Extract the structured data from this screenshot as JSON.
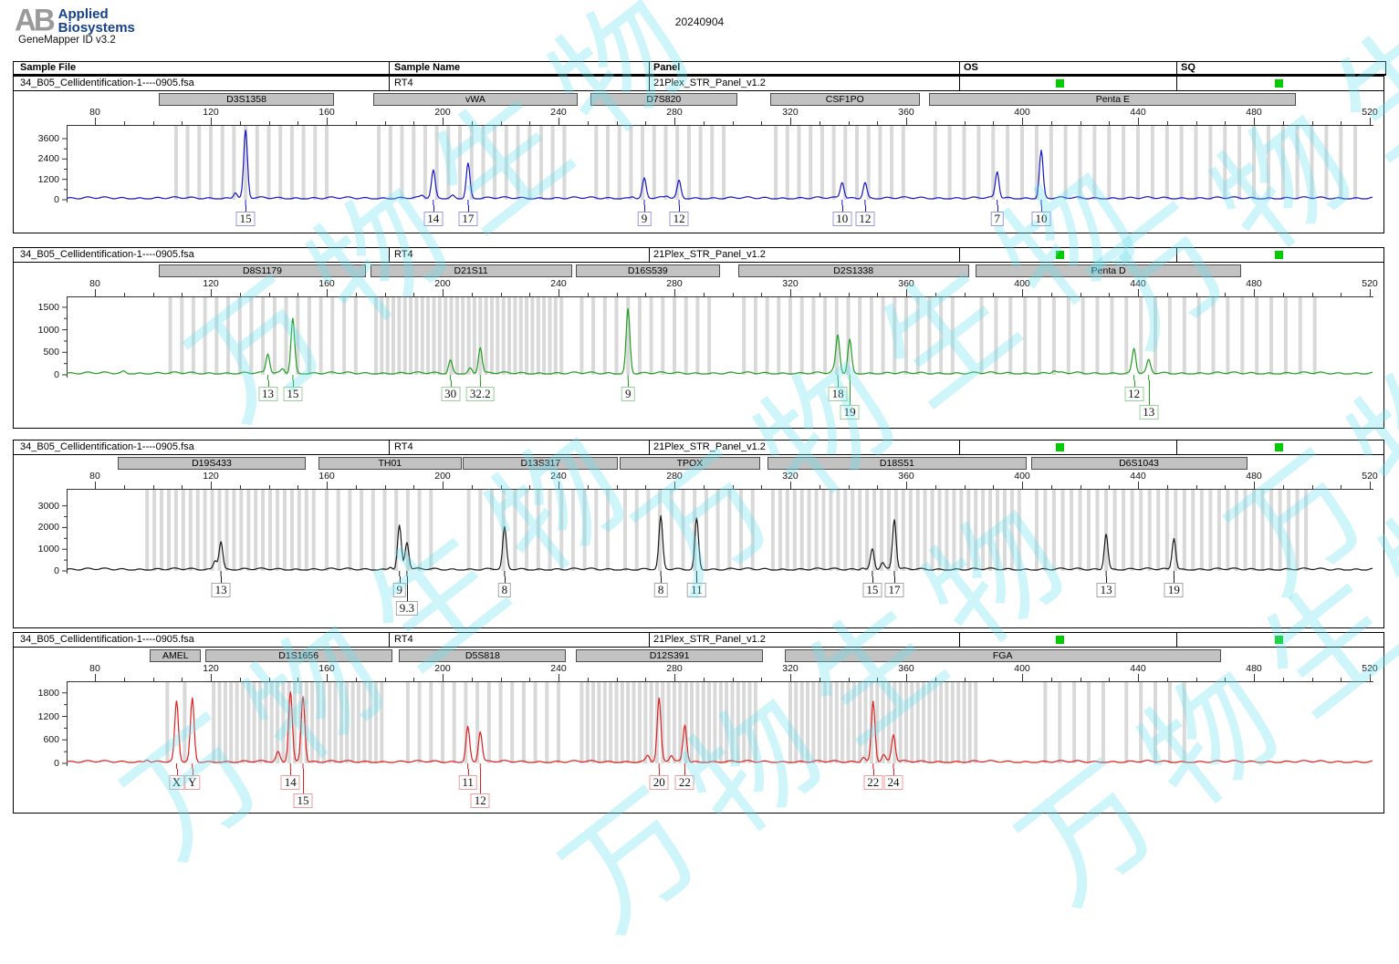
{
  "header": {
    "logo_mark": "AB",
    "logo_line1": "Applied",
    "logo_line2": "Biosystems",
    "app_version": "GeneMapper ID v3.2",
    "date_title": "20240904"
  },
  "columns": {
    "sample_file": "Sample File",
    "sample_name": "Sample Name",
    "panel": "Panel",
    "os": "OS",
    "sq": "SQ"
  },
  "status_color": "#00CC00",
  "watermark": {
    "text": "万物生物"
  },
  "x_axis_ticks": [
    80,
    120,
    160,
    200,
    240,
    280,
    320,
    360,
    400,
    440,
    480,
    520
  ],
  "panels": [
    {
      "sample_file": "34_B05_Cellidentification-1----0905.fsa",
      "sample_name": "RT4",
      "panel_name": "21Plex_STR_Panel_v1.2",
      "os_pass": true,
      "sq_pass": true,
      "trace_color": "#1616c8",
      "label_border_color": "#9898d8",
      "y_ticks": [
        0,
        1200,
        2400,
        3600
      ],
      "y_max_display": 4300,
      "markers": [
        {
          "name": "D3S1358",
          "range_bp": [
            102,
            162
          ],
          "bins": [
            [
              108,
              160,
              4
            ]
          ]
        },
        {
          "name": "vWA",
          "range_bp": [
            176,
            246
          ],
          "bins": [
            [
              178,
              244,
              4
            ]
          ]
        },
        {
          "name": "D7S820",
          "range_bp": [
            251,
            301
          ],
          "bins": [
            [
              253,
              299,
              4
            ]
          ]
        },
        {
          "name": "CSF1PO",
          "range_bp": [
            313,
            364
          ],
          "bins": [
            [
              315,
              362,
              4
            ]
          ]
        },
        {
          "name": "Penta E",
          "range_bp": [
            368,
            494
          ],
          "bins": [
            [
              370,
              515,
              5
            ]
          ]
        }
      ],
      "peaks": [
        {
          "marker": "D3S1358",
          "allele": "15",
          "bp": 132.0,
          "height_rfu": 3950,
          "label_row": 1
        },
        {
          "marker": "vWA",
          "allele": "14",
          "bp": 196.8,
          "height_rfu": 1600,
          "label_row": 1
        },
        {
          "marker": "vWA",
          "allele": "17",
          "bp": 208.8,
          "height_rfu": 2050,
          "label_row": 1
        },
        {
          "marker": "D7S820",
          "allele": "9",
          "bp": 269.6,
          "height_rfu": 1150,
          "label_row": 1
        },
        {
          "marker": "D7S820",
          "allele": "12",
          "bp": 281.6,
          "height_rfu": 1000,
          "label_row": 1
        },
        {
          "marker": "CSF1PO",
          "allele": "10",
          "bp": 337.9,
          "height_rfu": 950,
          "label_row": 1
        },
        {
          "marker": "CSF1PO",
          "allele": "12",
          "bp": 345.8,
          "height_rfu": 950,
          "label_row": 1
        },
        {
          "marker": "Penta E",
          "allele": "7",
          "bp": 391.4,
          "height_rfu": 1550,
          "label_row": 1
        },
        {
          "marker": "Penta E",
          "allele": "10",
          "bp": 406.6,
          "height_rfu": 2800,
          "label_row": 1
        }
      ],
      "minor_peaks": [
        [
          128.5,
          350
        ],
        [
          193.0,
          140
        ],
        [
          203.5,
          160
        ],
        [
          265.5,
          120
        ],
        [
          277.5,
          110
        ]
      ]
    },
    {
      "sample_file": "34_B05_Cellidentification-1----0905.fsa",
      "sample_name": "RT4",
      "panel_name": "21Plex_STR_Panel_v1.2",
      "os_pass": true,
      "sq_pass": true,
      "trace_color": "#1f9e1f",
      "label_border_color": "#99cf99",
      "y_ticks": [
        0,
        500,
        1000,
        1500
      ],
      "y_max_display": 1700,
      "markers": [
        {
          "name": "D8S1179",
          "range_bp": [
            102,
            173
          ],
          "bins": [
            [
              106,
              170,
              4
            ]
          ]
        },
        {
          "name": "D21S11",
          "range_bp": [
            175,
            244
          ],
          "bins": [
            [
              177,
              242,
              2
            ]
          ]
        },
        {
          "name": "D16S539",
          "range_bp": [
            246,
            295
          ],
          "bins": [
            [
              248,
              293,
              4
            ]
          ]
        },
        {
          "name": "D2S1338",
          "range_bp": [
            302,
            381
          ],
          "bins": [
            [
              304,
              379,
              4
            ]
          ]
        },
        {
          "name": "Penta D",
          "range_bp": [
            384,
            475
          ],
          "bins": [
            [
              386,
              505,
              5
            ]
          ]
        }
      ],
      "peaks": [
        {
          "marker": "D8S1179",
          "allele": "13",
          "bp": 139.7,
          "height_rfu": 430,
          "label_row": 1
        },
        {
          "marker": "D8S1179",
          "allele": "15",
          "bp": 148.3,
          "height_rfu": 1220,
          "label_row": 1
        },
        {
          "marker": "D21S11",
          "allele": "30",
          "bp": 202.7,
          "height_rfu": 290,
          "label_row": 1
        },
        {
          "marker": "D21S11",
          "allele": "32.2",
          "bp": 213.0,
          "height_rfu": 580,
          "label_row": 1
        },
        {
          "marker": "D16S539",
          "allele": "9",
          "bp": 264.0,
          "height_rfu": 1430,
          "label_row": 1
        },
        {
          "marker": "D2S1338",
          "allele": "18",
          "bp": 336.4,
          "height_rfu": 830,
          "label_row": 1
        },
        {
          "marker": "D2S1338",
          "allele": "19",
          "bp": 340.5,
          "height_rfu": 750,
          "label_row": 2
        },
        {
          "marker": "Penta D",
          "allele": "12",
          "bp": 438.6,
          "height_rfu": 540,
          "label_row": 1
        },
        {
          "marker": "Penta D",
          "allele": "13",
          "bp": 443.7,
          "height_rfu": 280,
          "label_row": 2
        }
      ],
      "minor_peaks": [
        [
          144.8,
          100
        ],
        [
          209.5,
          110
        ],
        [
          335.0,
          70
        ],
        [
          411.0,
          60
        ],
        [
          90.0,
          40
        ]
      ]
    },
    {
      "sample_file": "34_B05_Cellidentification-1----0905.fsa",
      "sample_name": "RT4",
      "panel_name": "21Plex_STR_Panel_v1.2",
      "os_pass": true,
      "sq_pass": true,
      "trace_color": "#1a1a1a",
      "label_border_color": "#a6a6a6",
      "y_ticks": [
        0,
        1000,
        2000,
        3000
      ],
      "y_max_display": 3700,
      "markers": [
        {
          "name": "D19S433",
          "range_bp": [
            88,
            152
          ],
          "bins": [
            [
              98,
              157,
              2.5
            ]
          ]
        },
        {
          "name": "TH01",
          "range_bp": [
            157,
            206
          ],
          "bins": [
            [
              160,
              196,
              4
            ]
          ]
        },
        {
          "name": "D13S317",
          "range_bp": [
            207,
            260
          ],
          "bins": [
            [
              209,
              258,
              4
            ]
          ]
        },
        {
          "name": "TPOX",
          "range_bp": [
            261,
            309
          ],
          "bins": [
            [
              263,
              307,
              4
            ]
          ]
        },
        {
          "name": "D18S51",
          "range_bp": [
            312,
            401
          ],
          "bins": [
            [
              314,
              399,
              2.5
            ]
          ]
        },
        {
          "name": "D6S1043",
          "range_bp": [
            403,
            477
          ],
          "bins": [
            [
              405,
              500,
              3
            ]
          ]
        }
      ],
      "peaks": [
        {
          "marker": "D19S433",
          "allele": "13",
          "bp": 123.5,
          "height_rfu": 1300,
          "label_row": 1
        },
        {
          "marker": "TH01",
          "allele": "9",
          "bp": 185.1,
          "height_rfu": 2000,
          "label_row": 1
        },
        {
          "marker": "TH01",
          "allele": "9.3",
          "bp": 187.7,
          "height_rfu": 1250,
          "label_row": 2
        },
        {
          "marker": "D13S317",
          "allele": "8",
          "bp": 221.4,
          "height_rfu": 1900,
          "label_row": 1
        },
        {
          "marker": "TPOX",
          "allele": "8",
          "bp": 275.3,
          "height_rfu": 2400,
          "label_row": 1
        },
        {
          "marker": "TPOX",
          "allele": "11",
          "bp": 287.7,
          "height_rfu": 2350,
          "label_row": 1
        },
        {
          "marker": "D18S51",
          "allele": "15",
          "bp": 348.3,
          "height_rfu": 950,
          "label_row": 1
        },
        {
          "marker": "D18S51",
          "allele": "17",
          "bp": 355.9,
          "height_rfu": 2300,
          "label_row": 1
        },
        {
          "marker": "D6S1043",
          "allele": "13",
          "bp": 429.0,
          "height_rfu": 1650,
          "label_row": 1
        },
        {
          "marker": "D6S1043",
          "allele": "19",
          "bp": 452.4,
          "height_rfu": 1450,
          "label_row": 1
        }
      ],
      "minor_peaks": [
        [
          121.5,
          420
        ],
        [
          351.8,
          320
        ],
        [
          182.0,
          120
        ],
        [
          345.0,
          90
        ]
      ]
    },
    {
      "sample_file": "34_B05_Cellidentification-1----0905.fsa",
      "sample_name": "RT4",
      "panel_name": "21Plex_STR_Panel_v1.2",
      "os_pass": true,
      "sq_pass": true,
      "trace_color": "#e01e1e",
      "label_border_color": "#eb9f9f",
      "y_ticks": [
        0,
        600,
        1200,
        1800
      ],
      "y_max_display": 2050,
      "markers": [
        {
          "name": "AMEL",
          "range_bp": [
            99,
            116
          ],
          "bins": [
            [
              105,
              114,
              6
            ]
          ]
        },
        {
          "name": "D1S1656",
          "range_bp": [
            118,
            182
          ],
          "bins": [
            [
              121,
              180,
              2
            ]
          ]
        },
        {
          "name": "D5S818",
          "range_bp": [
            185,
            242
          ],
          "bins": [
            [
              188,
              240,
              4
            ]
          ]
        },
        {
          "name": "D12S391",
          "range_bp": [
            246,
            310
          ],
          "bins": [
            [
              248,
              308,
              2
            ]
          ]
        },
        {
          "name": "FGA",
          "range_bp": [
            318,
            468
          ],
          "bins": [
            [
              320,
              385,
              2
            ],
            [
              408,
              428,
              5
            ],
            [
              436,
              458,
              5
            ]
          ]
        }
      ],
      "peaks": [
        {
          "marker": "AMEL",
          "allele": "X",
          "bp": 108.2,
          "height_rfu": 1520,
          "label_row": 1
        },
        {
          "marker": "AMEL",
          "allele": "Y",
          "bp": 113.6,
          "height_rfu": 1600,
          "label_row": 1
        },
        {
          "marker": "D1S1656",
          "allele": "14",
          "bp": 147.5,
          "height_rfu": 1800,
          "label_row": 1
        },
        {
          "marker": "D1S1656",
          "allele": "15",
          "bp": 151.8,
          "height_rfu": 1680,
          "label_row": 2
        },
        {
          "marker": "D5S818",
          "allele": "11",
          "bp": 208.7,
          "height_rfu": 900,
          "label_row": 1
        },
        {
          "marker": "D5S818",
          "allele": "12",
          "bp": 213.0,
          "height_rfu": 780,
          "label_row": 2
        },
        {
          "marker": "D12S391",
          "allele": "20",
          "bp": 274.7,
          "height_rfu": 1600,
          "label_row": 1
        },
        {
          "marker": "D12S391",
          "allele": "22",
          "bp": 283.6,
          "height_rfu": 950,
          "label_row": 1
        },
        {
          "marker": "FGA",
          "allele": "22",
          "bp": 348.6,
          "height_rfu": 1550,
          "label_row": 1
        },
        {
          "marker": "FGA",
          "allele": "24",
          "bp": 355.6,
          "height_rfu": 700,
          "label_row": 1
        }
      ],
      "minor_peaks": [
        [
          143.2,
          240
        ],
        [
          270.8,
          160
        ],
        [
          278.9,
          160
        ],
        [
          345.3,
          130
        ],
        [
          352.2,
          180
        ],
        [
          98.0,
          60
        ]
      ]
    }
  ]
}
